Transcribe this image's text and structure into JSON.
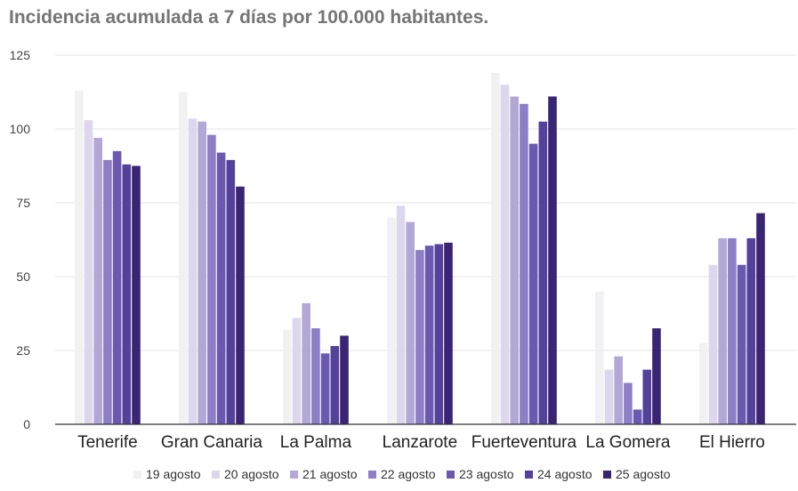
{
  "chart_data": {
    "type": "bar",
    "title": "Incidencia acumulada a 7 días por 100.000 habitantes.",
    "xlabel": "",
    "ylabel": "",
    "ylim": [
      0,
      125
    ],
    "yticks": [
      0,
      25,
      50,
      75,
      100,
      125
    ],
    "grid": true,
    "legend_position": "bottom",
    "categories": [
      "Tenerife",
      "Gran Canaria",
      "La Palma",
      "Lanzarote",
      "Fuerteventura",
      "La Gomera",
      "El Hierro"
    ],
    "series": [
      {
        "name": "19 agosto",
        "color": "#f1f1f3",
        "values": [
          113,
          112.5,
          32,
          70,
          119,
          45,
          27.5
        ]
      },
      {
        "name": "20 agosto",
        "color": "#dcd7ed",
        "values": [
          103,
          103.5,
          36,
          74,
          115,
          18.5,
          54
        ]
      },
      {
        "name": "21 agosto",
        "color": "#b3a7d6",
        "values": [
          97,
          102.5,
          41,
          68.5,
          111,
          23,
          63
        ]
      },
      {
        "name": "22 agosto",
        "color": "#8e7ec5",
        "values": [
          89.5,
          98,
          32.5,
          59,
          108.5,
          14,
          63
        ]
      },
      {
        "name": "23 agosto",
        "color": "#6c59af",
        "values": [
          92.5,
          92,
          24,
          60.5,
          95,
          5,
          54
        ]
      },
      {
        "name": "24 agosto",
        "color": "#54419c",
        "values": [
          88,
          89.5,
          26.5,
          61,
          102.5,
          18.5,
          63
        ]
      },
      {
        "name": "25 agosto",
        "color": "#3a2474",
        "values": [
          87.5,
          80.5,
          30,
          61.5,
          111,
          32.5,
          71.5
        ]
      }
    ]
  }
}
